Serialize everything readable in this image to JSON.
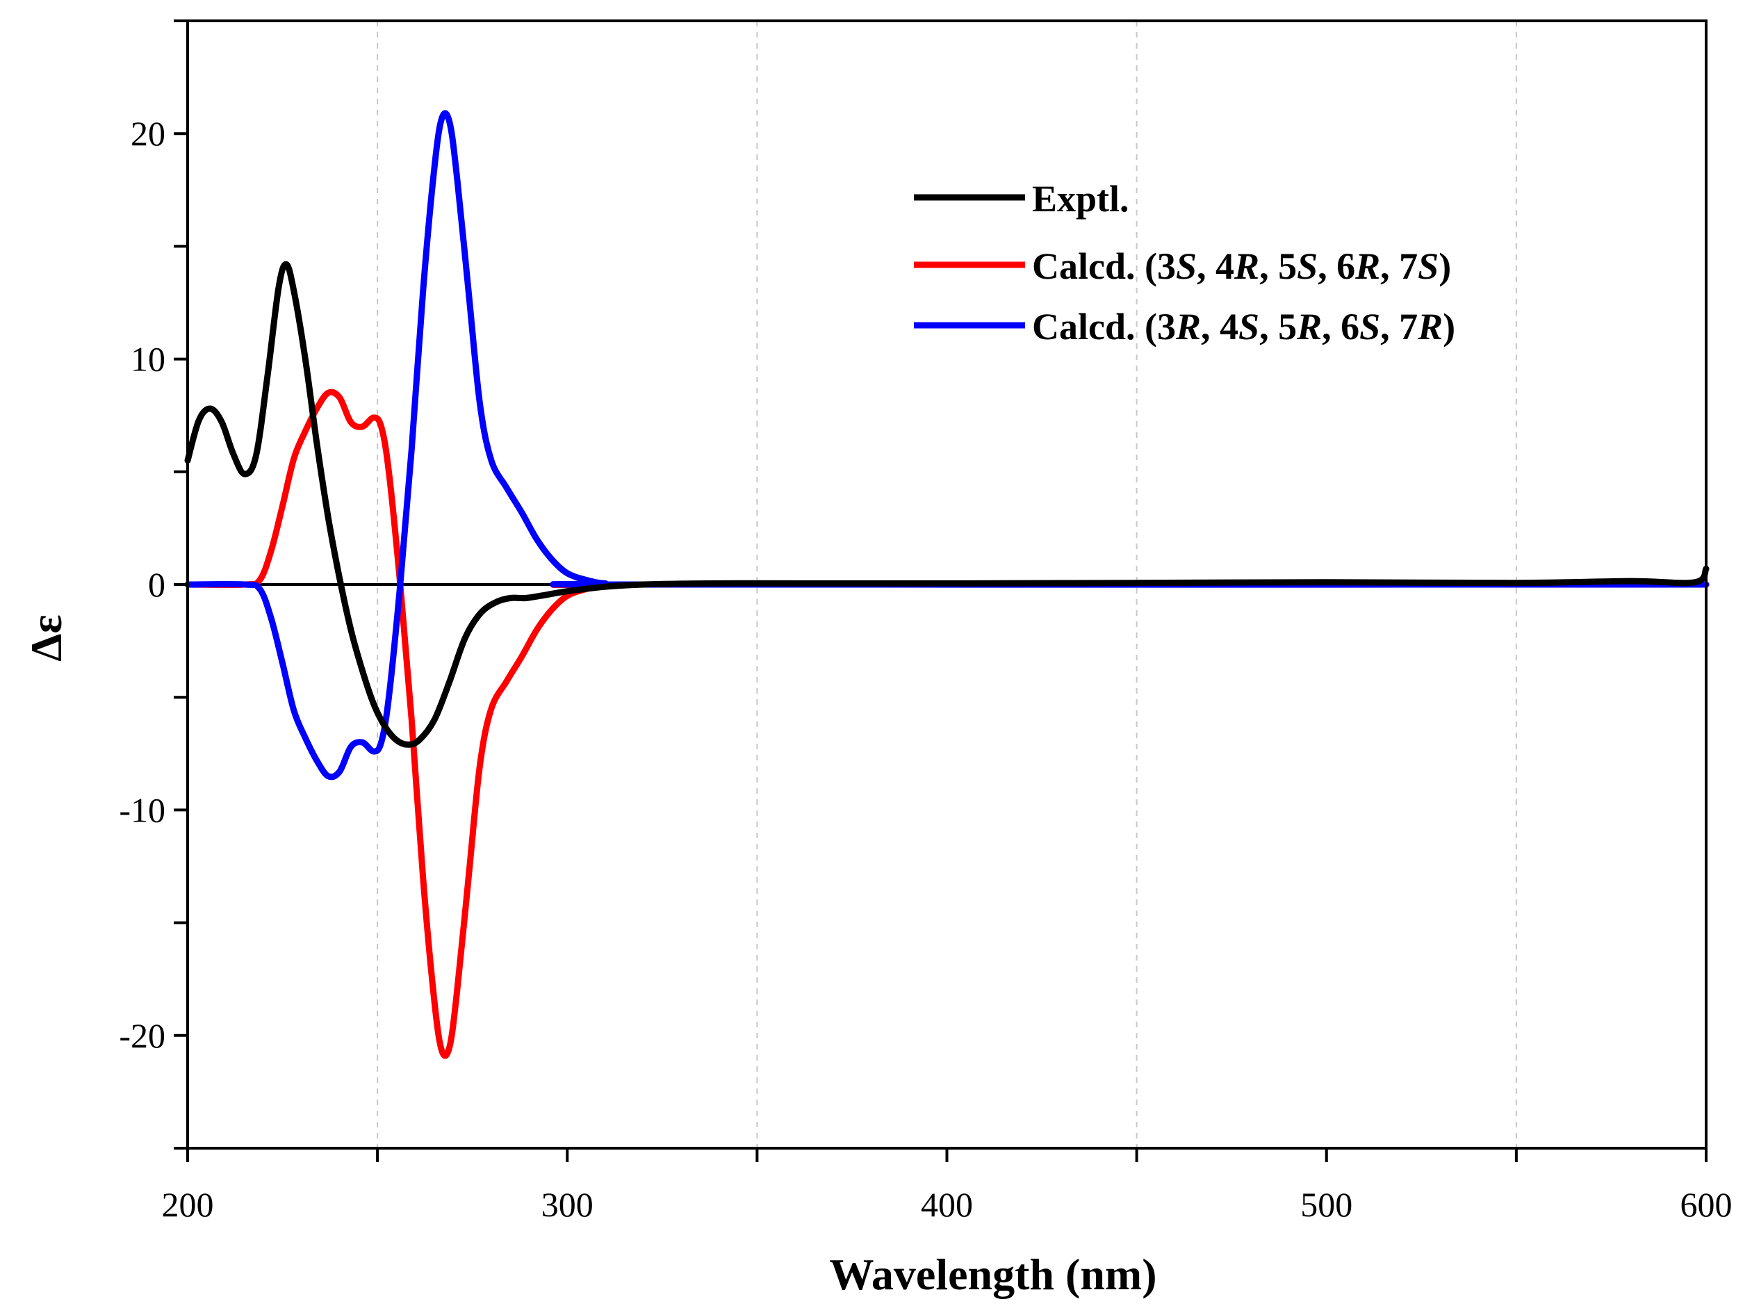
{
  "chart_data": {
    "type": "line",
    "title": "",
    "xlabel": "Wavelength (nm)",
    "ylabel": "Δε",
    "xlim": [
      200,
      600
    ],
    "ylim": [
      -25,
      25
    ],
    "x_ticks": [
      200,
      300,
      400,
      500,
      600
    ],
    "y_ticks": [
      -20,
      -10,
      0,
      10,
      20
    ],
    "x_tick_labels": [
      "200",
      "300",
      "400",
      "500",
      "600"
    ],
    "y_tick_labels": [
      "-20",
      "-10",
      "0",
      "10",
      "20"
    ],
    "grid": {
      "vertical": [
        250,
        350,
        450,
        550
      ],
      "style": "dashed"
    },
    "zero_line": 0,
    "legend_position": "top-right",
    "series": [
      {
        "name": "Exptl.",
        "legend_parts": [
          {
            "t": "Exptl.",
            "i": false
          }
        ],
        "color": "#000000",
        "points": [
          [
            200,
            5.5
          ],
          [
            203,
            7.3
          ],
          [
            206,
            7.8
          ],
          [
            209,
            7.2
          ],
          [
            212,
            5.8
          ],
          [
            215,
            4.9
          ],
          [
            218,
            5.7
          ],
          [
            221,
            9.2
          ],
          [
            224,
            13.2
          ],
          [
            226,
            14.2
          ],
          [
            228,
            13.0
          ],
          [
            231,
            10.0
          ],
          [
            234,
            6.3
          ],
          [
            237,
            3.0
          ],
          [
            240,
            0.3
          ],
          [
            243,
            -2.0
          ],
          [
            246,
            -3.8
          ],
          [
            249,
            -5.3
          ],
          [
            252,
            -6.3
          ],
          [
            255,
            -6.9
          ],
          [
            258,
            -7.1
          ],
          [
            261,
            -6.9
          ],
          [
            265,
            -6.0
          ],
          [
            269,
            -4.3
          ],
          [
            273,
            -2.4
          ],
          [
            277,
            -1.3
          ],
          [
            281,
            -0.8
          ],
          [
            285,
            -0.6
          ],
          [
            289,
            -0.6
          ],
          [
            293,
            -0.5
          ],
          [
            300,
            -0.3
          ],
          [
            310,
            -0.1
          ],
          [
            320,
            0.0
          ],
          [
            340,
            0.05
          ],
          [
            360,
            0.05
          ],
          [
            400,
            0.05
          ],
          [
            450,
            0.07
          ],
          [
            500,
            0.1
          ],
          [
            550,
            0.07
          ],
          [
            580,
            0.15
          ],
          [
            597,
            0.1
          ],
          [
            600,
            0.7
          ]
        ]
      },
      {
        "name": "Calcd. (3S, 4R, 5S, 6R, 7S)",
        "legend_parts": [
          {
            "t": "Calcd. (3",
            "i": false
          },
          {
            "t": "S",
            "i": true
          },
          {
            "t": ", 4",
            "i": false
          },
          {
            "t": "R",
            "i": true
          },
          {
            "t": ", 5",
            "i": false
          },
          {
            "t": "S",
            "i": true
          },
          {
            "t": ", 6",
            "i": false
          },
          {
            "t": "R",
            "i": true
          },
          {
            "t": ", 7",
            "i": false
          },
          {
            "t": "S",
            "i": true
          },
          {
            "t": ")",
            "i": false
          }
        ],
        "color": "#ff0000",
        "points": [
          [
            200,
            0
          ],
          [
            215,
            0
          ],
          [
            219,
            0.2
          ],
          [
            222,
            1.5
          ],
          [
            225,
            3.5
          ],
          [
            228,
            5.6
          ],
          [
            231,
            6.8
          ],
          [
            234,
            7.8
          ],
          [
            237,
            8.5
          ],
          [
            240,
            8.3
          ],
          [
            243,
            7.2
          ],
          [
            246,
            7.0
          ],
          [
            249,
            7.4
          ],
          [
            251,
            7.0
          ],
          [
            253,
            5.0
          ],
          [
            256,
            0
          ],
          [
            259,
            -6
          ],
          [
            262,
            -13
          ],
          [
            265,
            -18.5
          ],
          [
            267,
            -20.7
          ],
          [
            269,
            -20.5
          ],
          [
            271,
            -18
          ],
          [
            274,
            -13
          ],
          [
            277,
            -8
          ],
          [
            280,
            -5.5
          ],
          [
            284,
            -4.3
          ],
          [
            288,
            -3.2
          ],
          [
            292,
            -2.0
          ],
          [
            296,
            -1.1
          ],
          [
            300,
            -0.5
          ],
          [
            305,
            -0.2
          ],
          [
            310,
            -0.05
          ],
          [
            320,
            0
          ],
          [
            600,
            0
          ]
        ]
      },
      {
        "name": "Calcd. (3R, 4S, 5R, 6S, 7R)",
        "legend_parts": [
          {
            "t": "Calcd. (3",
            "i": false
          },
          {
            "t": "R",
            "i": true
          },
          {
            "t": ", 4",
            "i": false
          },
          {
            "t": "S",
            "i": true
          },
          {
            "t": ", 5",
            "i": false
          },
          {
            "t": "R",
            "i": true
          },
          {
            "t": ", 6",
            "i": false
          },
          {
            "t": "S",
            "i": true
          },
          {
            "t": ", 7",
            "i": false
          },
          {
            "t": "R",
            "i": true
          },
          {
            "t": ")",
            "i": false
          }
        ],
        "color": "#0000ff",
        "points": [
          [
            200,
            0
          ],
          [
            215,
            0
          ],
          [
            219,
            -0.2
          ],
          [
            222,
            -1.5
          ],
          [
            225,
            -3.5
          ],
          [
            228,
            -5.6
          ],
          [
            231,
            -6.8
          ],
          [
            234,
            -7.8
          ],
          [
            237,
            -8.5
          ],
          [
            240,
            -8.3
          ],
          [
            243,
            -7.2
          ],
          [
            246,
            -7.0
          ],
          [
            249,
            -7.4
          ],
          [
            251,
            -7.0
          ],
          [
            253,
            -5.0
          ],
          [
            256,
            0
          ],
          [
            259,
            6
          ],
          [
            262,
            13
          ],
          [
            265,
            18.5
          ],
          [
            267,
            20.7
          ],
          [
            269,
            20.5
          ],
          [
            271,
            18
          ],
          [
            274,
            13
          ],
          [
            277,
            8
          ],
          [
            280,
            5.5
          ],
          [
            284,
            4.3
          ],
          [
            288,
            3.2
          ],
          [
            292,
            2.0
          ],
          [
            296,
            1.1
          ],
          [
            300,
            0.5
          ],
          [
            305,
            0.2
          ],
          [
            310,
            0.05
          ],
          [
            320,
            0
          ],
          [
            600,
            0
          ]
        ]
      }
    ]
  }
}
